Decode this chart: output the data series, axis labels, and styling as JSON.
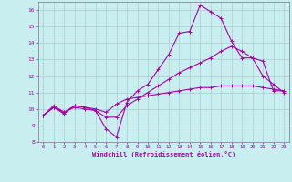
{
  "xlabel": "Windchill (Refroidissement éolien,°C)",
  "background_color": "#c8eef0",
  "grid_color": "#aacccc",
  "line_color": "#aa00aa",
  "xlim": [
    -0.5,
    23.5
  ],
  "ylim": [
    8,
    16.5
  ],
  "yticks": [
    8,
    9,
    10,
    11,
    12,
    13,
    14,
    15,
    16
  ],
  "xticks": [
    0,
    1,
    2,
    3,
    4,
    5,
    6,
    7,
    8,
    9,
    10,
    11,
    12,
    13,
    14,
    15,
    16,
    17,
    18,
    19,
    20,
    21,
    22,
    23
  ],
  "series1": [
    9.6,
    10.2,
    9.8,
    10.2,
    10.1,
    9.9,
    8.8,
    8.3,
    10.4,
    11.1,
    11.5,
    12.4,
    13.3,
    14.6,
    14.7,
    16.3,
    15.9,
    15.5,
    14.1,
    13.1,
    13.1,
    12.9,
    11.1,
    11.1
  ],
  "series2": [
    9.6,
    10.1,
    9.8,
    10.1,
    10.0,
    9.9,
    9.5,
    9.5,
    10.2,
    10.6,
    11.0,
    11.4,
    11.8,
    12.2,
    12.5,
    12.8,
    13.1,
    13.5,
    13.8,
    13.5,
    13.1,
    12.0,
    11.5,
    11.0
  ],
  "series3": [
    9.6,
    10.1,
    9.7,
    10.2,
    10.1,
    10.0,
    9.8,
    10.3,
    10.6,
    10.7,
    10.8,
    10.9,
    11.0,
    11.1,
    11.2,
    11.3,
    11.3,
    11.4,
    11.4,
    11.4,
    11.4,
    11.3,
    11.2,
    11.1
  ]
}
